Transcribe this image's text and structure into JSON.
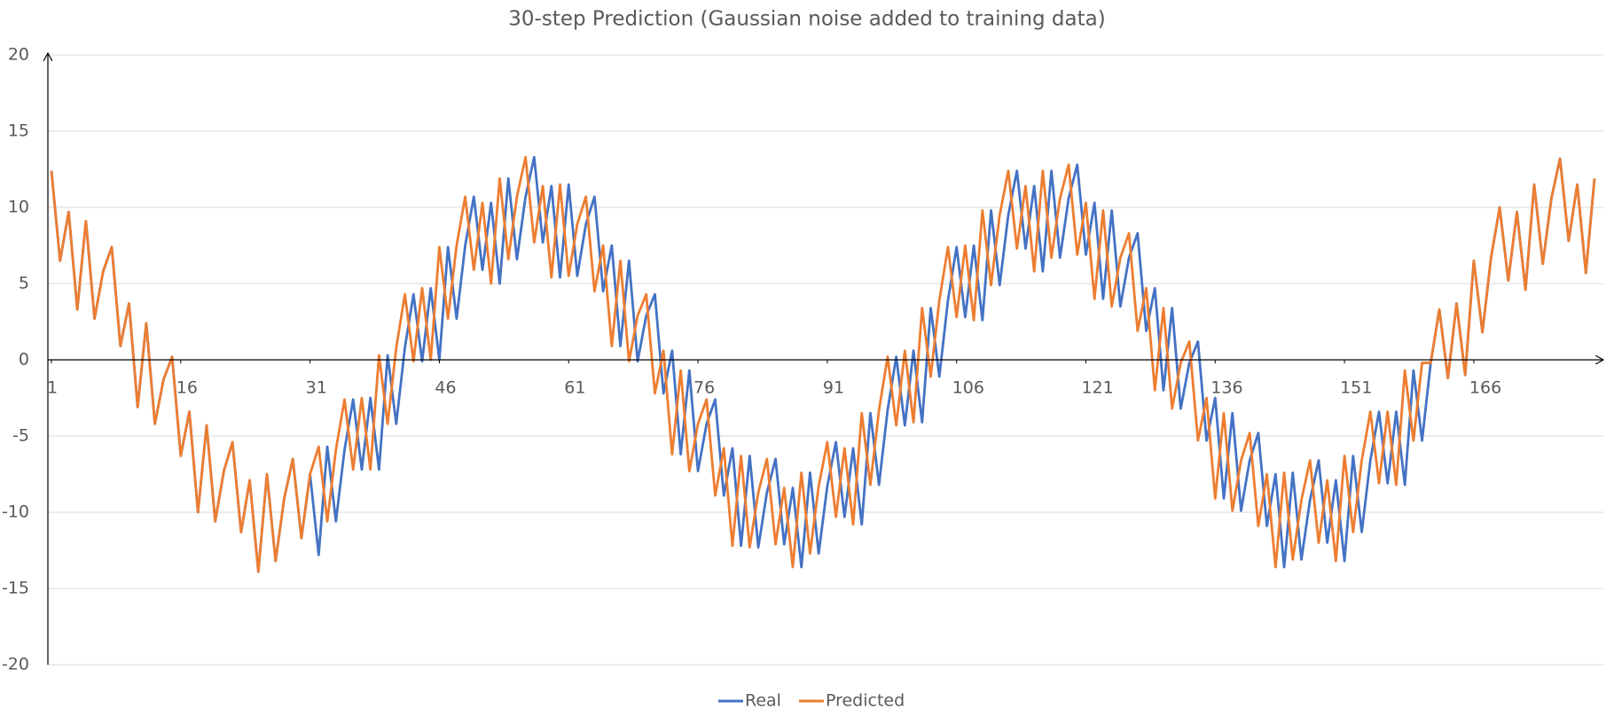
{
  "chart_data": {
    "type": "line",
    "title": "30-step Prediction (Gaussian noise added to training data)",
    "x": [
      1,
      2,
      3,
      4,
      5,
      6,
      7,
      8,
      9,
      10,
      11,
      12,
      13,
      14,
      15,
      16,
      17,
      18,
      19,
      20,
      21,
      22,
      23,
      24,
      25,
      26,
      27,
      28,
      29,
      30,
      31,
      32,
      33,
      34,
      35,
      36,
      37,
      38,
      39,
      40,
      41,
      42,
      43,
      44,
      45,
      46,
      47,
      48,
      49,
      50,
      51,
      52,
      53,
      54,
      55,
      56,
      57,
      58,
      59,
      60,
      61,
      62,
      63,
      64,
      65,
      66,
      67,
      68,
      69,
      70,
      71,
      72,
      73,
      74,
      75,
      76,
      77,
      78,
      79,
      80,
      81,
      82,
      83,
      84,
      85,
      86,
      87,
      88,
      89,
      90,
      91,
      92,
      93,
      94,
      95,
      96,
      97,
      98,
      99,
      100,
      101,
      102,
      103,
      104,
      105,
      106,
      107,
      108,
      109,
      110,
      111,
      112,
      113,
      114,
      115,
      116,
      117,
      118,
      119,
      120,
      121,
      122,
      123,
      124,
      125,
      126,
      127,
      128,
      129,
      130,
      131,
      132,
      133,
      134,
      135,
      136,
      137,
      138,
      139,
      140,
      141,
      142,
      143,
      144,
      145,
      146,
      147,
      148,
      149,
      150,
      151,
      152,
      153,
      154,
      155,
      156,
      157,
      158,
      159,
      160,
      161,
      162,
      163,
      164,
      165,
      166,
      167,
      168,
      169,
      170,
      171,
      172,
      173,
      174,
      175,
      176,
      177,
      178,
      179,
      180
    ],
    "series": [
      {
        "name": "Real",
        "color": "#4472c4",
        "values": [
          12.4,
          6.5,
          9.7,
          3.3,
          9.1,
          2.7,
          5.8,
          7.4,
          0.9,
          3.7,
          -3.1,
          2.4,
          -4.2,
          -1.3,
          0.2,
          -6.3,
          -3.4,
          -10,
          -4.3,
          -10.6,
          -7.3,
          -5.4,
          -11.3,
          -7.9,
          -13.9,
          -7.5,
          -13.2,
          -9.1,
          -6.5,
          -11.7,
          -7.5,
          -12.8,
          -5.7,
          -10.6,
          -5.9,
          -2.6,
          -7.2,
          -2.5,
          -7.2,
          0.3,
          -4.2,
          0.8,
          4.3,
          -0.1,
          4.7,
          0,
          7.4,
          2.7,
          7.5,
          10.7,
          5.9,
          10.3,
          5,
          11.9,
          6.6,
          10.7,
          13.3,
          7.7,
          11.4,
          5.4,
          11.5,
          5.5,
          8.9,
          10.7,
          4.5,
          7.5,
          0.9,
          6.5,
          -0.1,
          2.9,
          4.3,
          -2.2,
          0.6,
          -6.2,
          -0.7,
          -7.3,
          -4.2,
          -2.6,
          -8.9,
          -5.8,
          -12.2,
          -6.3,
          -12.3,
          -8.7,
          -6.5,
          -12.1,
          -8.4,
          -13.6,
          -7.4,
          -12.7,
          -8.3,
          -5.4,
          -10.3,
          -5.8,
          -10.8,
          -3.5,
          -8.2,
          -3.3,
          0.2,
          -4.3,
          0.6,
          -4.1,
          3.4,
          -1.1,
          3.9,
          7.4,
          2.8,
          7.5,
          2.6,
          9.8,
          4.9,
          9.5,
          12.4,
          7.3,
          11.4,
          5.8,
          12.4,
          6.7,
          10.6,
          12.8,
          6.9,
          10.3,
          4,
          9.8,
          3.5,
          6.7,
          8.3,
          1.9,
          4.7,
          -2,
          3.4,
          -3.2,
          -0.2,
          1.2,
          -5.3,
          -2.5,
          -9.1,
          -3.5,
          -9.9,
          -6.6,
          -4.8,
          -10.9,
          -7.5,
          -13.6,
          -7.4,
          -13.1,
          -9.2,
          -6.6,
          -12,
          -7.9,
          -13.2,
          -6.3,
          -11.3,
          -6.6,
          -3.4,
          -8.1,
          -3.4,
          -8.2,
          -0.7,
          -5.3,
          -0.2,
          3.3,
          -1.2,
          3.7,
          -1,
          6.5,
          1.8,
          6.7,
          10,
          5.2,
          9.7,
          4.6,
          11.5,
          6.3,
          10.6,
          13.2,
          7.8,
          11.5,
          5.7,
          11.9
        ]
      },
      {
        "name": "Predicted",
        "color": "#ed7d31",
        "values": [
          12.4,
          6.5,
          9.7,
          3.3,
          9.1,
          2.7,
          5.8,
          7.4,
          0.9,
          3.7,
          -3.1,
          2.4,
          -4.2,
          -1.3,
          0.2,
          -6.3,
          -3.4,
          -10,
          -4.3,
          -10.6,
          -7.3,
          -5.4,
          -11.3,
          -7.9,
          -13.9,
          -7.5,
          -13.2,
          -9.1,
          -6.5,
          -11.7,
          -7.5,
          -5.7,
          -10.6,
          -5.9,
          -2.6,
          -7.2,
          -2.5,
          -7.2,
          0.3,
          -4.2,
          0.8,
          4.3,
          -0.1,
          4.7,
          0,
          7.4,
          2.7,
          7.5,
          10.7,
          5.9,
          10.3,
          5,
          11.9,
          6.6,
          10.7,
          13.3,
          7.7,
          11.4,
          5.4,
          11.5,
          5.5,
          8.9,
          10.7,
          4.5,
          7.5,
          0.9,
          6.5,
          -0.1,
          2.9,
          4.3,
          -2.2,
          0.6,
          -6.2,
          -0.7,
          -7.3,
          -4.2,
          -2.6,
          -8.9,
          -5.8,
          -12.2,
          -6.3,
          -12.3,
          -8.7,
          -6.5,
          -12.1,
          -8.4,
          -13.6,
          -7.4,
          -12.7,
          -8.3,
          -5.4,
          -10.3,
          -5.8,
          -10.8,
          -3.5,
          -8.2,
          -3.3,
          0.2,
          -4.3,
          0.6,
          -4.1,
          3.4,
          -1.1,
          3.9,
          7.4,
          2.8,
          7.5,
          2.6,
          9.8,
          4.9,
          9.5,
          12.4,
          7.3,
          11.4,
          5.8,
          12.4,
          6.7,
          10.6,
          12.8,
          6.9,
          10.3,
          4,
          9.8,
          3.5,
          6.7,
          8.3,
          1.9,
          4.7,
          -2,
          3.4,
          -3.2,
          -0.2,
          1.2,
          -5.3,
          -2.5,
          -9.1,
          -3.5,
          -9.9,
          -6.6,
          -4.8,
          -10.9,
          -7.5,
          -13.6,
          -7.4,
          -13.1,
          -9.2,
          -6.6,
          -12,
          -7.9,
          -13.2,
          -6.3,
          -11.3,
          -6.6,
          -3.4,
          -8.1,
          -3.4,
          -8.2,
          -0.7,
          -5.3,
          -0.2,
          -0.2,
          3.3,
          -1.2,
          3.7,
          -1,
          6.5,
          1.8,
          6.7,
          10,
          5.2,
          9.7,
          4.6,
          11.5,
          6.3,
          10.6,
          13.2,
          7.8,
          11.5,
          5.7,
          11.9
        ]
      }
    ],
    "xlim": [
      1,
      180
    ],
    "xticks": [
      1,
      16,
      31,
      46,
      61,
      76,
      91,
      106,
      121,
      136,
      151,
      166
    ],
    "ylim": [
      -20,
      20
    ],
    "yticks": [
      -20,
      -15,
      -10,
      -5,
      0,
      5,
      10,
      15,
      20
    ],
    "grid": true,
    "legend": "bottom"
  }
}
